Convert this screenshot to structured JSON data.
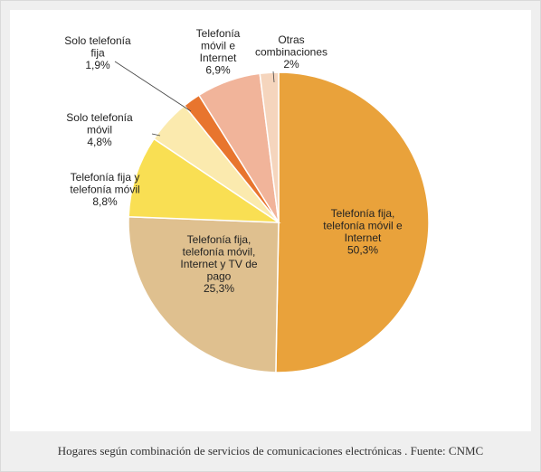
{
  "caption": "Hogares según combinación de servicios de comunicaciones electrónicas . Fuente: CNMC",
  "chart_data": {
    "type": "pie",
    "title": "",
    "slices": [
      {
        "label": "Telefonía fija, telefonía móvil e Internet",
        "value_label": "50,3%",
        "value": 50.3,
        "color": "#e9a23b"
      },
      {
        "label": "Telefonía fija, telefonía móvil, Internet y TV de pago",
        "value_label": "25,3%",
        "value": 25.3,
        "color": "#dfc08f"
      },
      {
        "label": "Telefonía fija y telefonía móvil",
        "value_label": "8,8%",
        "value": 8.8,
        "color": "#f9df53"
      },
      {
        "label": "Solo telefonía móvil",
        "value_label": "4,8%",
        "value": 4.8,
        "color": "#fbeaae"
      },
      {
        "label": "Solo telefonía fija",
        "value_label": "1,9%",
        "value": 1.9,
        "color": "#e8752e"
      },
      {
        "label": "Telefonía móvil e Internet",
        "value_label": "6,9%",
        "value": 6.9,
        "color": "#f1b49a"
      },
      {
        "label": "Otras combinaciones",
        "value_label": "2%",
        "value": 2.0,
        "color": "#f5d5bd"
      }
    ]
  }
}
